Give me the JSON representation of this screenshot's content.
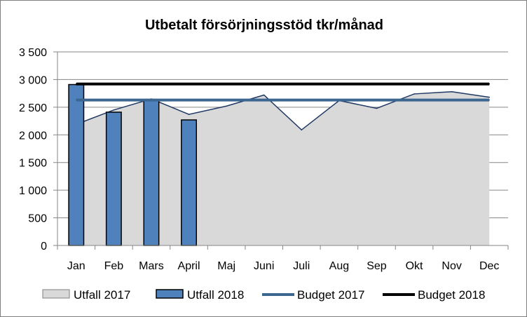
{
  "chart_data": {
    "type": "bar",
    "title": "Utbetalt försörjningsstöd tkr/månad",
    "xlabel": "",
    "ylabel": "",
    "ylim": [
      0,
      3500
    ],
    "yticks": [
      0,
      500,
      1000,
      1500,
      2000,
      2500,
      3000,
      3500
    ],
    "ytick_labels": [
      "0",
      "500",
      "1 000",
      "1 500",
      "2 000",
      "2 500",
      "3 000",
      "3 500"
    ],
    "categories": [
      "Jan",
      "Feb",
      "Mars",
      "April",
      "Maj",
      "Juni",
      "Juli",
      "Aug",
      "Sep",
      "Okt",
      "Nov",
      "Dec"
    ],
    "grid": true,
    "legend_position": "bottom",
    "series": [
      {
        "name": "Utfall 2017",
        "kind": "area",
        "color": "#d9d9d9",
        "line_color": "#1f3864",
        "values": [
          2190,
          2450,
          2650,
          2370,
          2520,
          2720,
          2090,
          2620,
          2480,
          2740,
          2780,
          2680
        ]
      },
      {
        "name": "Utfall 2018",
        "kind": "bar",
        "color": "#4f81bd",
        "values": [
          2910,
          2410,
          2620,
          2270,
          null,
          null,
          null,
          null,
          null,
          null,
          null,
          null
        ]
      },
      {
        "name": "Budget 2017",
        "kind": "line",
        "color": "#3a6690",
        "values": [
          2630,
          2630,
          2630,
          2630,
          2630,
          2630,
          2630,
          2630,
          2630,
          2630,
          2630,
          2630
        ]
      },
      {
        "name": "Budget 2018",
        "kind": "line",
        "color": "#000000",
        "values": [
          2920,
          2920,
          2920,
          2920,
          2920,
          2920,
          2920,
          2920,
          2920,
          2920,
          2920,
          2920
        ]
      }
    ]
  }
}
